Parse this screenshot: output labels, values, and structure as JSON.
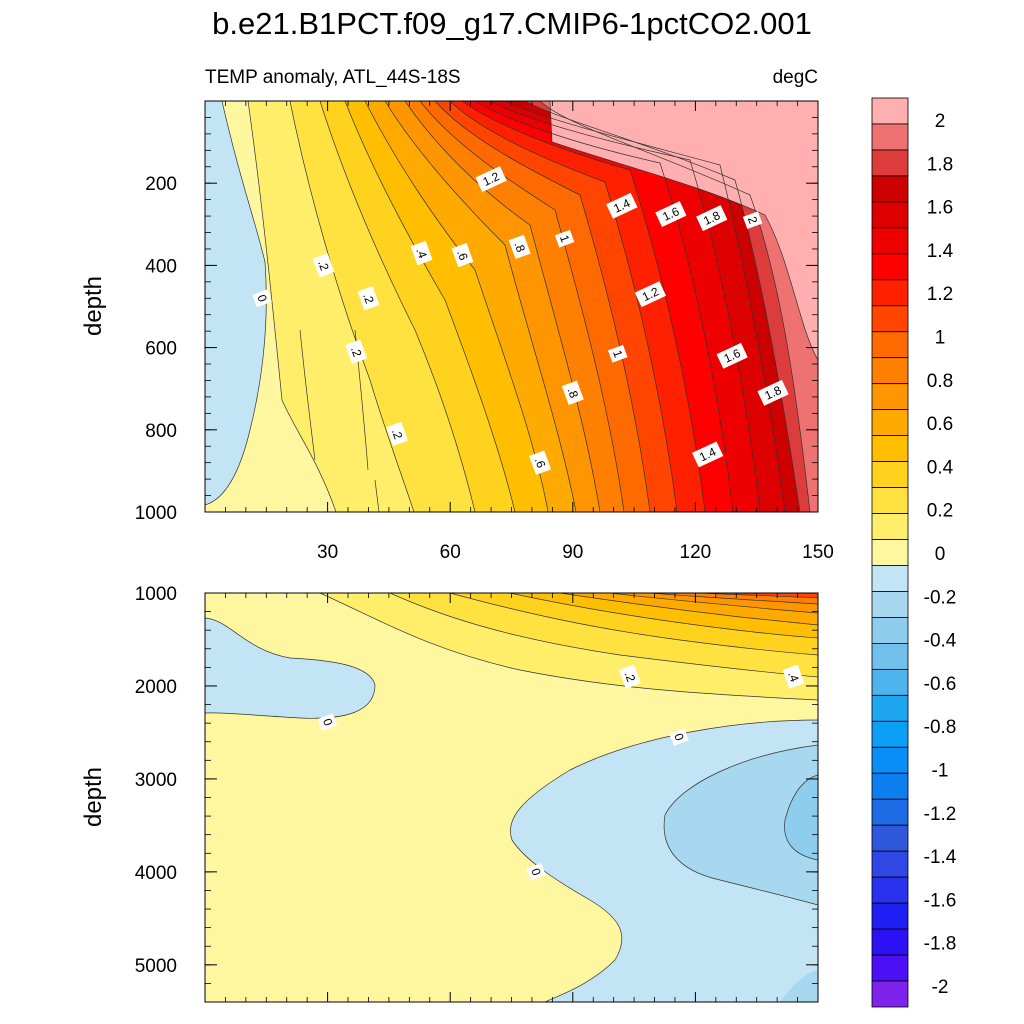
{
  "chart_data": {
    "type": "contour",
    "title": "b.e21.B1PCT.f09_g17.CMIP6-1pctCO2.001",
    "subtitle_left": "TEMP anomaly, ATL_44S-18S",
    "subtitle_right": "degC",
    "xlim": [
      0,
      150
    ],
    "x_ticks": [
      "30",
      "60",
      "90",
      "120",
      "150"
    ],
    "panels": [
      {
        "name": "upper",
        "ylabel": "depth",
        "ylim": [
          1000,
          0
        ],
        "y_ticks": [
          "200",
          "400",
          "600",
          "800",
          "1000"
        ],
        "contour_labels": [
          {
            "text": "0",
            "x": 14,
            "y": 480
          },
          {
            "text": ".2",
            "x": 29,
            "y": 400
          },
          {
            "text": ".2",
            "x": 40,
            "y": 480
          },
          {
            "text": ".2",
            "x": 37,
            "y": 610
          },
          {
            "text": ".2",
            "x": 47,
            "y": 810
          },
          {
            "text": ".4",
            "x": 53,
            "y": 370
          },
          {
            "text": ".6",
            "x": 63,
            "y": 375
          },
          {
            "text": ".8",
            "x": 77,
            "y": 355
          },
          {
            "text": "1",
            "x": 88,
            "y": 335
          },
          {
            "text": "1.2",
            "x": 70,
            "y": 190
          },
          {
            "text": "1.4",
            "x": 102,
            "y": 255
          },
          {
            "text": "1.6",
            "x": 114,
            "y": 275
          },
          {
            "text": "1.8",
            "x": 124,
            "y": 285
          },
          {
            "text": "2",
            "x": 134,
            "y": 290
          },
          {
            "text": "1.2",
            "x": 109,
            "y": 470
          },
          {
            "text": "1",
            "x": 101,
            "y": 615
          },
          {
            "text": ".8",
            "x": 90,
            "y": 710
          },
          {
            "text": "1.6",
            "x": 129,
            "y": 620
          },
          {
            "text": "1.8",
            "x": 139,
            "y": 710
          },
          {
            "text": ".6",
            "x": 82,
            "y": 880
          },
          {
            "text": "1.4",
            "x": 123,
            "y": 860
          }
        ]
      },
      {
        "name": "lower",
        "ylabel": "depth",
        "ylim": [
          5400,
          1000
        ],
        "y_ticks": [
          "1000",
          "2000",
          "3000",
          "4000",
          "5000"
        ],
        "contour_labels": [
          {
            "text": "0",
            "x": 30,
            "y": 2390
          },
          {
            "text": ".2",
            "x": 104,
            "y": 1900
          },
          {
            "text": ".4",
            "x": 144,
            "y": 1900
          },
          {
            "text": "0",
            "x": 116,
            "y": 2550
          },
          {
            "text": "0",
            "x": 81,
            "y": 4000
          }
        ]
      }
    ],
    "colorbar": {
      "levels": [
        -2,
        -1.8,
        -1.6,
        -1.4,
        -1.2,
        -1,
        -0.8,
        -0.6,
        -0.4,
        -0.2,
        0,
        0.2,
        0.4,
        0.6,
        0.8,
        1,
        1.2,
        1.4,
        1.6,
        1.8,
        2
      ],
      "labels": [
        "2",
        "1.8",
        "1.6",
        "1.4",
        "1.2",
        "1",
        "0.8",
        "0.6",
        "0.4",
        "0.2",
        "0",
        "-0.2",
        "-0.4",
        "-0.6",
        "-0.8",
        "-1",
        "-1.2",
        "-1.4",
        "-1.6",
        "-1.8",
        "-2"
      ],
      "colors_top_to_bottom": [
        "#ffafaf",
        "#ef7272",
        "#dc3c3c",
        "#cc0000",
        "#dd0000",
        "#ee0000",
        "#ff0000",
        "#ff2000",
        "#ff4500",
        "#ff6a00",
        "#ff8000",
        "#ff9500",
        "#ffaa00",
        "#ffbf00",
        "#ffd21e",
        "#ffe240",
        "#ffee6a",
        "#fff6a0",
        "#c3e4f5",
        "#a8d8f0",
        "#8ecdee",
        "#71c1ec",
        "#4db4ee",
        "#1ea6f0",
        "#0ba0f5",
        "#098ef6",
        "#0d7eee",
        "#1f6be6",
        "#2f57db",
        "#3047e6",
        "#2a32ee",
        "#1e1ef5",
        "#2e10f5",
        "#4d0ff5",
        "#7e22ee"
      ]
    }
  }
}
